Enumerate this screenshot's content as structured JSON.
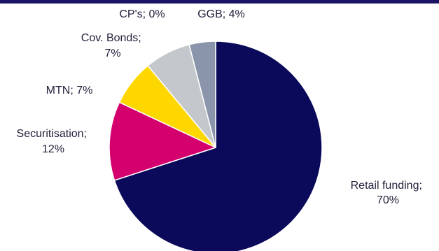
{
  "chart_data": {
    "type": "pie",
    "title": "",
    "slices": [
      {
        "label": "Retail funding",
        "value": 70,
        "display": [
          "Retail funding;",
          "70%"
        ],
        "color": "#0b0a5a"
      },
      {
        "label": "Securitisation",
        "value": 12,
        "display": [
          "Securitisation;",
          "12%"
        ],
        "color": "#d4006e"
      },
      {
        "label": "MTN",
        "value": 7,
        "display": [
          "MTN; 7%"
        ],
        "color": "#ffd700"
      },
      {
        "label": "Cov. Bonds",
        "value": 7,
        "display": [
          "Cov. Bonds;",
          "7%"
        ],
        "color": "#c4c8cc"
      },
      {
        "label": "CP's",
        "value": 0,
        "display": [
          "CP's; 0%"
        ],
        "color": "#aab0bb"
      },
      {
        "label": "GGB",
        "value": 4,
        "display": [
          "GGB; 4%"
        ],
        "color": "#8a94ab"
      }
    ],
    "start": "12 o'clock",
    "direction": "clockwise",
    "legend": "none"
  },
  "accent_color": "#1b1464"
}
